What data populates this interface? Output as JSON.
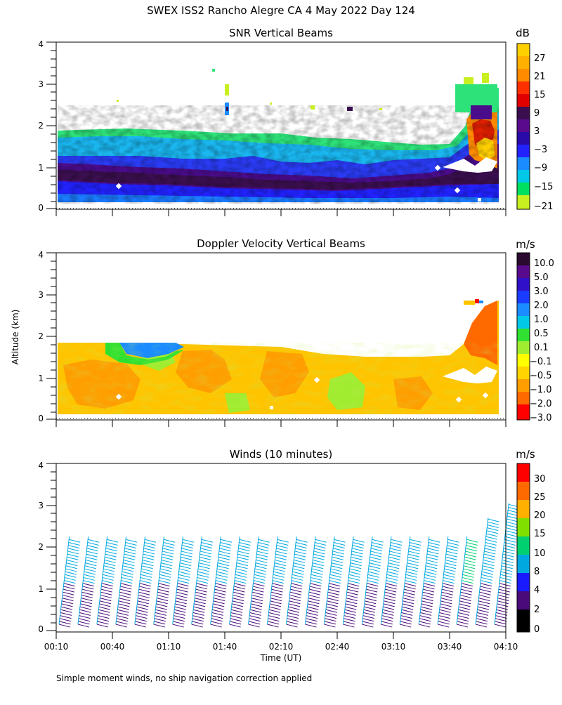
{
  "header": {
    "title": "SWEX ISS2 Rancho Alegre CA   4 May 2022 Day 124"
  },
  "footer": {
    "note": "Simple moment winds, no ship navigation correction applied"
  },
  "y_axis_label": "Altitude (km)",
  "x_axis_label": "Time (UT)",
  "chart_data": [
    {
      "type": "heatmap",
      "title": "SNR Vertical Beams",
      "ylim": [
        0,
        4
      ],
      "yticks": [
        "0",
        "1",
        "2",
        "3",
        "4"
      ],
      "xrange": [
        "00:10",
        "04:10"
      ],
      "approx_top_km": 1.85,
      "colorbar": {
        "unit": "dB",
        "labels": [
          "27",
          "21",
          "15",
          "9",
          "3",
          "−3",
          "−9",
          "−15",
          "−21"
        ],
        "colors": [
          "#ffd000",
          "#ff8c00",
          "#ff3000",
          "#e00000",
          "#3b0f4f",
          "#5a0a8c",
          "#2222ff",
          "#1a64ff",
          "#00b4f0",
          "#00c8a0",
          "#00e060",
          "#80e040",
          "#c8f020"
        ]
      },
      "profile_bands": [
        {
          "range_km": [
            0.15,
            0.55
          ],
          "color": "#2a26ee"
        },
        {
          "range_km": [
            0.55,
            1.05
          ],
          "color": "#5a0a8c"
        },
        {
          "range_km": [
            1.05,
            1.45
          ],
          "color": "#00b4f0"
        },
        {
          "range_km": [
            1.45,
            1.85
          ],
          "color": "#30e070"
        }
      ]
    },
    {
      "type": "heatmap",
      "title": "Doppler Velocity Vertical Beams",
      "ylim": [
        0,
        4
      ],
      "yticks": [
        "0",
        "1",
        "2",
        "3",
        "4"
      ],
      "xrange": [
        "00:10",
        "04:10"
      ],
      "approx_top_km": 1.8,
      "colorbar": {
        "unit": "m/s",
        "labels": [
          "10.0",
          "5.0",
          "3.0",
          "2.0",
          "1.0",
          "0.5",
          "0.1",
          "−0.1",
          "−0.5",
          "−1.0",
          "−2.0",
          "−3.0"
        ],
        "colors": [
          "#2a0a2e",
          "#5a0a8c",
          "#3010c8",
          "#1a3cff",
          "#1a8cff",
          "#00c8e6",
          "#30e030",
          "#a0ec30",
          "#ffff00",
          "#ffd400",
          "#ff9e00",
          "#ff6a00",
          "#ff0000"
        ]
      },
      "dominant_range_m_s": [
        -1.0,
        0.1
      ]
    },
    {
      "type": "scatter",
      "title": "Winds (10 minutes)",
      "ylim": [
        0,
        4
      ],
      "yticks": [
        "0",
        "1",
        "2",
        "3",
        "4"
      ],
      "xrange": [
        "00:10",
        "04:10"
      ],
      "xticks": [
        "00:10",
        "00:40",
        "01:10",
        "01:40",
        "02:10",
        "02:40",
        "03:10",
        "03:40",
        "04:10"
      ],
      "averaging_minutes": 10,
      "profile_count": 24,
      "colorbar": {
        "unit": "m/s",
        "labels": [
          "30",
          "25",
          "20",
          "15",
          "10",
          "8",
          "4",
          "2",
          "0"
        ],
        "colors": [
          "#ff0000",
          "#ff6a00",
          "#ffb000",
          "#80e000",
          "#00d070",
          "#00a8e0",
          "#1a1aff",
          "#4a0a7a",
          "#000000"
        ]
      },
      "speed_bands": [
        {
          "range_km": [
            0.1,
            1.2
          ],
          "speed_m_s": 3
        },
        {
          "range_km": [
            1.2,
            2.3
          ],
          "speed_m_s": 9
        }
      ]
    }
  ]
}
